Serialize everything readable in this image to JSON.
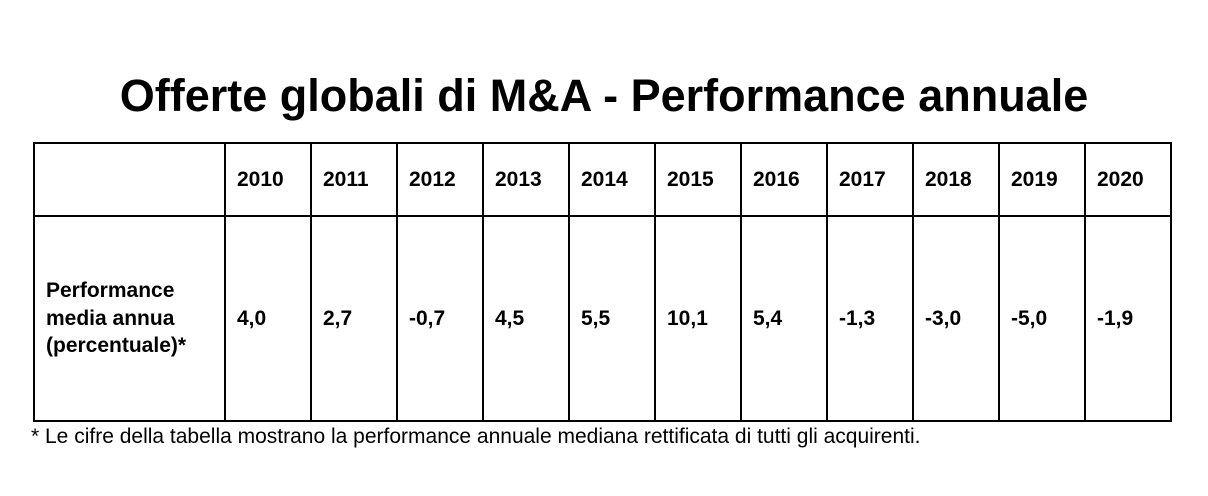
{
  "title": "Offerte globali di M&A - Performance annuale",
  "table": {
    "corner_label": "",
    "years": [
      "2010",
      "2011",
      "2012",
      "2013",
      "2014",
      "2015",
      "2016",
      "2017",
      "2018",
      "2019",
      "2020"
    ],
    "row_label": "Performance media annua (percentuale)*",
    "values": [
      "4,0",
      "2,7",
      "-0,7",
      "4,5",
      "5,5",
      "10,1",
      "5,4",
      "-1,3",
      "-3,0",
      "-5,0",
      "-1,9"
    ]
  },
  "footnote": "* Le cifre della tabella mostrano la performance annuale mediana rettificata di tutti gli acquirenti.",
  "colors": {
    "background": "#ffffff",
    "text": "#000000",
    "table_border": "#000000"
  },
  "chart_data": {
    "type": "table",
    "title": "Offerte globali di M&A - Performance annuale",
    "categories": [
      "2010",
      "2011",
      "2012",
      "2013",
      "2014",
      "2015",
      "2016",
      "2017",
      "2018",
      "2019",
      "2020"
    ],
    "series": [
      {
        "name": "Performance media annua (percentuale)*",
        "values": [
          4.0,
          2.7,
          -0.7,
          4.5,
          5.5,
          10.1,
          5.4,
          -1.3,
          -3.0,
          -5.0,
          -1.9
        ]
      }
    ]
  }
}
